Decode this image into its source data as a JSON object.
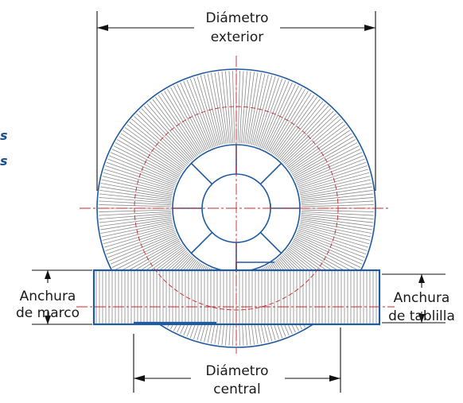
{
  "labels": {
    "outer_diameter_line1": "Diámetro",
    "outer_diameter_line2": "exterior",
    "core_diameter_line1": "Diámetro",
    "core_diameter_line2": "central",
    "frame_width_line1": "Anchura",
    "frame_width_line2": "de marco",
    "slat_width_line1": "Anchura",
    "slat_width_line2": "de tablilla"
  },
  "side_fragment": {
    "line1": "s",
    "line2": "s"
  },
  "colors": {
    "outline_blue": "#1f5aa0",
    "centerline_red": "#c8282d",
    "hatch_gray": "#8a8a8a",
    "dimension_black": "#111111",
    "side_text_blue": "#1b4f8f"
  }
}
